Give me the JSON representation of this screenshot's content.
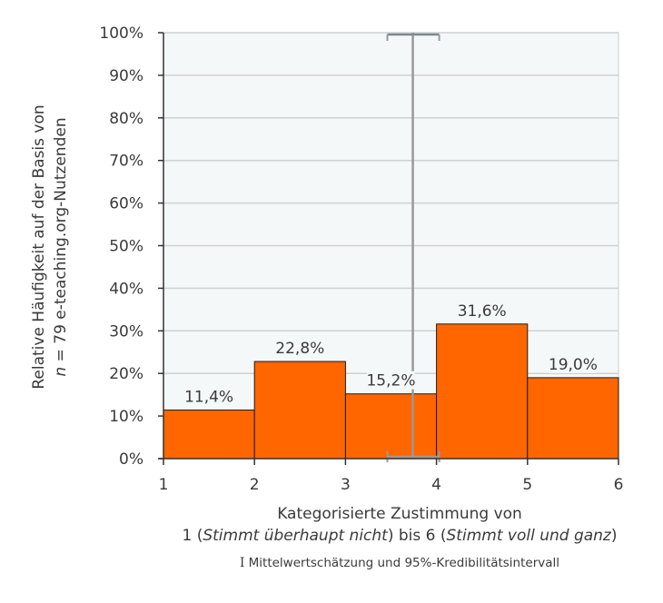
{
  "chart_data": {
    "type": "bar",
    "subtype": "histogram",
    "categories": [
      "1–2",
      "2–3",
      "3–4",
      "4–5",
      "5–6"
    ],
    "bin_edges": [
      1,
      2,
      3,
      4,
      5,
      6
    ],
    "values": [
      11.4,
      22.8,
      15.2,
      31.6,
      19.0
    ],
    "value_labels": [
      "11,4%",
      "22,8%",
      "15,2%",
      "31,6%",
      "19,0%"
    ],
    "ylabel_line1": "Relative Häufigkeit auf der Basis von",
    "ylabel_line2_italic": "n",
    "ylabel_line2_rest": " = 79 e-teaching.org-Nutzenden",
    "xlabel_line1": "Kategorisierte Zustimmung von",
    "xlabel_line2_parts": [
      "1 (",
      "Stimmt überhaupt nicht",
      ") bis 6 (",
      "Stimmt voll und ganz",
      ")"
    ],
    "yticks": [
      "0%",
      "10%",
      "20%",
      "30%",
      "40%",
      "50%",
      "60%",
      "70%",
      "80%",
      "90%",
      "100%"
    ],
    "xticks": [
      "1",
      "2",
      "3",
      "4",
      "5",
      "6"
    ],
    "ylim": [
      0,
      100
    ],
    "xlim": [
      1,
      6
    ],
    "grid": true,
    "mean_estimate": 3.74,
    "credibility_interval_95": [
      3.46,
      4.03
    ],
    "legend": {
      "symbol": "I",
      "text": "Mittelwertschätzung und 95%-Kredibilitätsintervall",
      "position": "bottom"
    },
    "colors": {
      "bar_fill": "#ff6600",
      "bar_stroke": "#1a1a1a",
      "plot_bg": "#f5f8f9",
      "grid": "#d0d0d0",
      "error_bar": "#999999"
    }
  }
}
